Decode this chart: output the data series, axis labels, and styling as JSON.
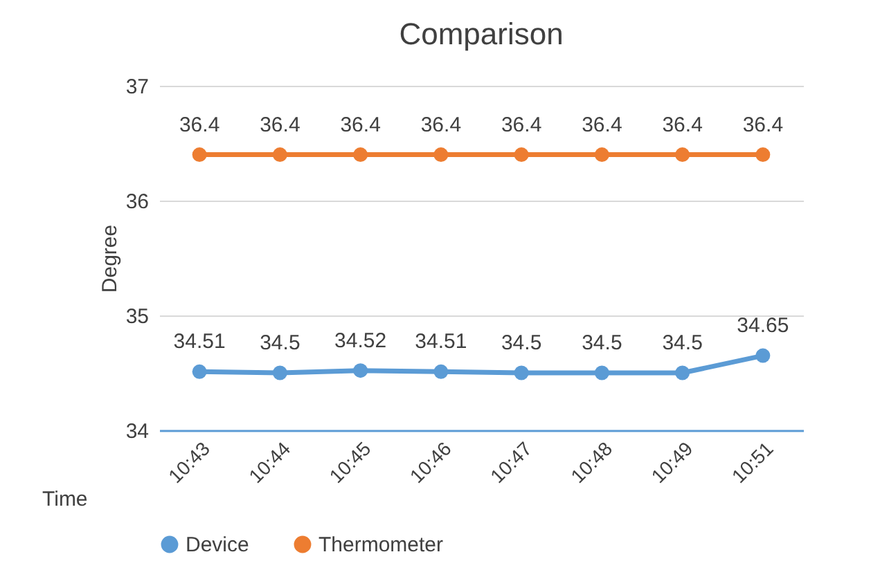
{
  "chart_data": {
    "type": "line",
    "title": "Comparison",
    "xlabel": "Time",
    "ylabel": "Degree",
    "categories": [
      "10:43",
      "10:44",
      "10:45",
      "10:46",
      "10:47",
      "10:48",
      "10:49",
      "10:51"
    ],
    "series": [
      {
        "name": "Device",
        "color": "#5b9bd5",
        "values": [
          34.51,
          34.5,
          34.52,
          34.51,
          34.5,
          34.5,
          34.5,
          34.65
        ]
      },
      {
        "name": "Thermometer",
        "color": "#ed7d31",
        "values": [
          36.4,
          36.4,
          36.4,
          36.4,
          36.4,
          36.4,
          36.4,
          36.4
        ]
      }
    ],
    "ylim": [
      34,
      37
    ],
    "yticks": [
      34,
      35,
      36,
      37
    ],
    "grid": "y",
    "legend": "bottom",
    "marker": "circle",
    "line_style": "solid",
    "data_labels": true
  }
}
